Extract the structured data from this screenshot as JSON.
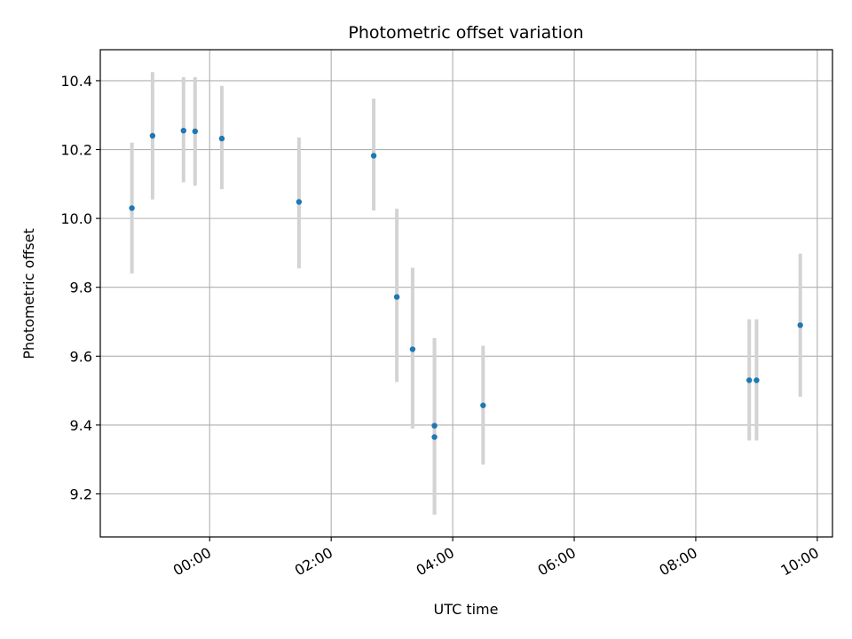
{
  "chart_data": {
    "type": "scatter",
    "title": "Photometric offset variation",
    "xlabel": "UTC time",
    "ylabel": "Photometric offset",
    "x_unit": "hours UTC",
    "xlim": [
      -1.8,
      10.25
    ],
    "ylim": [
      9.075,
      10.49
    ],
    "grid": true,
    "legend": "none",
    "x_ticks": [
      {
        "value": 0,
        "label": "00:00"
      },
      {
        "value": 2,
        "label": "02:00"
      },
      {
        "value": 4,
        "label": "04:00"
      },
      {
        "value": 6,
        "label": "06:00"
      },
      {
        "value": 8,
        "label": "08:00"
      },
      {
        "value": 10,
        "label": "10:00"
      }
    ],
    "y_ticks": [
      {
        "value": 9.2,
        "label": "9.2"
      },
      {
        "value": 9.4,
        "label": "9.4"
      },
      {
        "value": 9.6,
        "label": "9.6"
      },
      {
        "value": 9.8,
        "label": "9.8"
      },
      {
        "value": 10.0,
        "label": "10.0"
      },
      {
        "value": 10.2,
        "label": "10.2"
      },
      {
        "value": 10.4,
        "label": "10.4"
      }
    ],
    "colors": {
      "point": "#1f77b4",
      "errorbar": "#d3d3d3",
      "grid": "#b0b0b0"
    },
    "points": [
      {
        "x": -1.28,
        "y": 10.03,
        "y_low": 9.84,
        "y_high": 10.22
      },
      {
        "x": -0.94,
        "y": 10.24,
        "y_low": 10.055,
        "y_high": 10.425
      },
      {
        "x": -0.43,
        "y": 10.255,
        "y_low": 10.105,
        "y_high": 10.41
      },
      {
        "x": -0.24,
        "y": 10.253,
        "y_low": 10.095,
        "y_high": 10.41
      },
      {
        "x": 0.2,
        "y": 10.232,
        "y_low": 10.085,
        "y_high": 10.385
      },
      {
        "x": 1.47,
        "y": 10.048,
        "y_low": 9.855,
        "y_high": 10.235
      },
      {
        "x": 2.7,
        "y": 10.182,
        "y_low": 10.023,
        "y_high": 10.348
      },
      {
        "x": 3.08,
        "y": 9.772,
        "y_low": 9.525,
        "y_high": 10.028
      },
      {
        "x": 3.34,
        "y": 9.62,
        "y_low": 9.39,
        "y_high": 9.857
      },
      {
        "x": 3.7,
        "y": 9.398,
        "y_low": 9.14,
        "y_high": 9.652
      },
      {
        "x": 3.7,
        "y": 9.365,
        "y_low": 9.14,
        "y_high": 9.652
      },
      {
        "x": 4.5,
        "y": 9.457,
        "y_low": 9.285,
        "y_high": 9.63
      },
      {
        "x": 8.88,
        "y": 9.53,
        "y_low": 9.355,
        "y_high": 9.707
      },
      {
        "x": 9.0,
        "y": 9.53,
        "y_low": 9.355,
        "y_high": 9.707
      },
      {
        "x": 9.72,
        "y": 9.69,
        "y_low": 9.482,
        "y_high": 9.898
      }
    ]
  }
}
